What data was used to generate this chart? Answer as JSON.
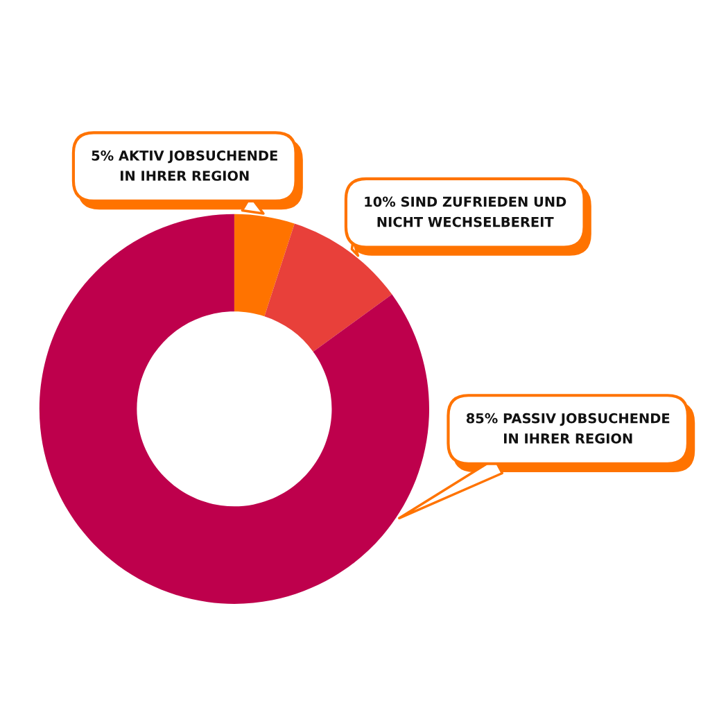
{
  "chart_data": {
    "type": "donut",
    "categories": [
      "5% AKTIV JOBSUCHENDE\nIN IHRER REGION",
      "10% SIND ZUFRIEDEN UND\nNICHT WECHSELBEREIT",
      "85% PASSIV JOBSUCHENDE\nIN IHRER REGION"
    ],
    "values": [
      5,
      10,
      85
    ],
    "colors": [
      "#ff7300",
      "#e8403a",
      "#be004c"
    ]
  }
}
